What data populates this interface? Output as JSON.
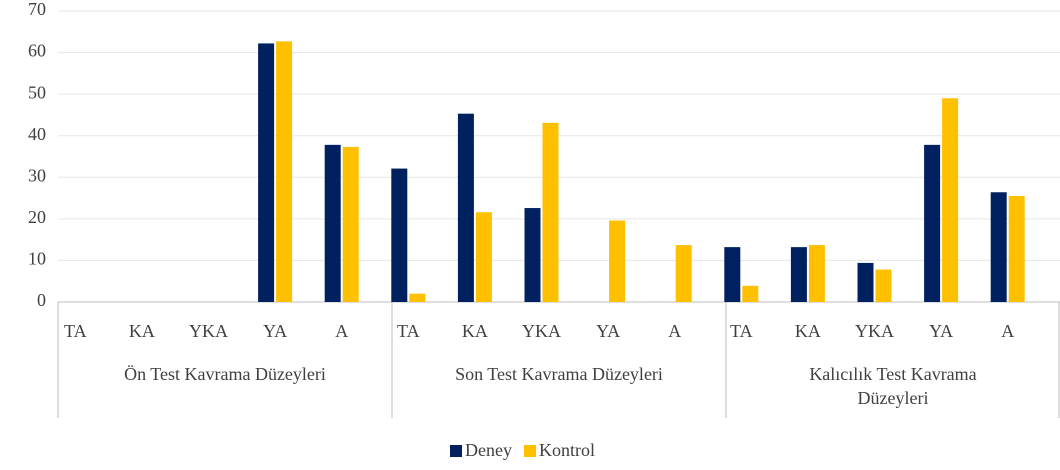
{
  "chart_data": {
    "type": "bar",
    "categories": [
      "TA",
      "KA",
      "YKA",
      "YA",
      "A",
      "TA",
      "KA",
      "YKA",
      "YA",
      "A",
      "TA",
      "KA",
      "YKA",
      "YA",
      "A"
    ],
    "groups": [
      "Ön Test Kavrama Düzeyleri",
      "Son Test Kavrama Düzeyleri",
      "Kalıcılık Test Kavrama Düzeyleri"
    ],
    "series": [
      {
        "name": "Deney",
        "color": "#002060",
        "values": [
          0,
          0,
          0,
          62.2,
          37.8,
          32.1,
          45.3,
          22.6,
          0,
          0,
          13.2,
          13.2,
          9.4,
          37.8,
          26.4
        ]
      },
      {
        "name": "Kontrol",
        "color": "#ffc000",
        "values": [
          0,
          0,
          0,
          62.7,
          37.3,
          2.0,
          21.6,
          43.1,
          19.6,
          13.7,
          3.9,
          13.7,
          7.8,
          49.0,
          25.5
        ]
      }
    ],
    "ylim": [
      0,
      70
    ],
    "yticks": [
      0,
      10,
      20,
      30,
      40,
      50,
      60,
      70
    ],
    "grid": true,
    "legend": "bottom"
  }
}
